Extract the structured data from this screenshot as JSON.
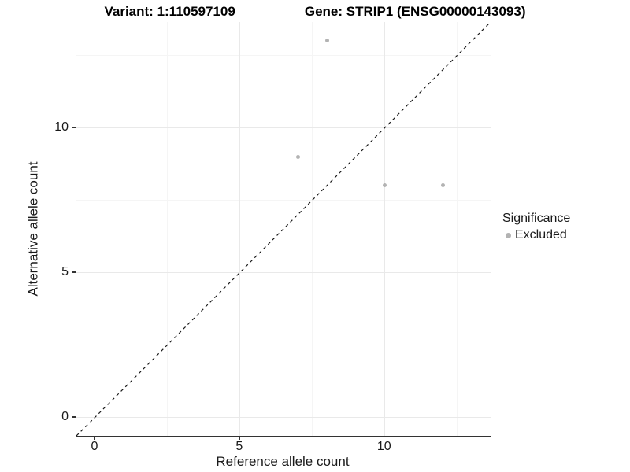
{
  "chart_data": {
    "type": "scatter",
    "title_parts": {
      "variant": "Variant: 1:110597109",
      "gene": "Gene: STRIP1 (ENSG00000143093)"
    },
    "xlabel": "Reference allele count",
    "ylabel": "Alternative allele count",
    "xlim": [
      -0.65,
      13.65
    ],
    "ylim": [
      -0.65,
      13.65
    ],
    "x_ticks": [
      0,
      5,
      10
    ],
    "y_ticks": [
      0,
      5,
      10
    ],
    "x_minor_gridlines": [
      2.5,
      7.5,
      12.5
    ],
    "y_minor_gridlines": [
      2.5,
      7.5,
      12.5
    ],
    "grid": true,
    "legend": {
      "title": "Significance",
      "position": "right",
      "entries": [
        {
          "label": "Excluded",
          "color": "#b3b3b3"
        }
      ]
    },
    "series": [
      {
        "name": "Excluded",
        "color": "#b3b3b3",
        "points": [
          [
            8,
            13
          ],
          [
            7,
            9
          ],
          [
            10,
            8
          ],
          [
            12,
            8
          ]
        ]
      }
    ],
    "reference_line": {
      "slope": 1,
      "intercept": 0,
      "style": "dashed",
      "color": "#1a1a1a"
    },
    "colors": {
      "axis_line": "#333333",
      "grid_major": "#e9e9e9",
      "grid_minor": "#f5f5f5",
      "text": "#1a1a1a",
      "point": "#b3b3b3"
    }
  }
}
